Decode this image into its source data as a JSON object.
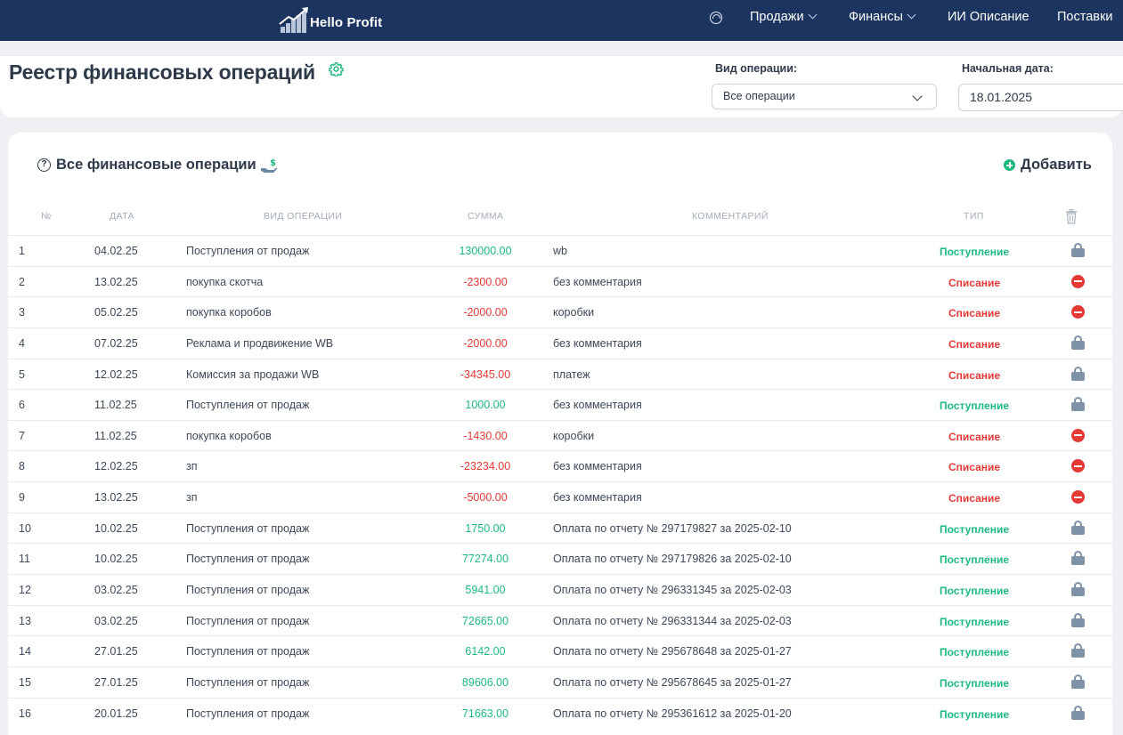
{
  "nav": {
    "logo_text": "Hello Profit",
    "items": [
      {
        "label": "Продажи",
        "has_dropdown": true
      },
      {
        "label": "Финансы",
        "has_dropdown": true
      },
      {
        "label": "ИИ Описание",
        "has_dropdown": false
      },
      {
        "label": "Поставки",
        "has_dropdown": false
      }
    ]
  },
  "header": {
    "title": "Реестр финансовых операций",
    "operation_type_label": "Вид операции:",
    "operation_type_value": "Все операции",
    "start_date_label": "Начальная дата:",
    "start_date_value": "18.01.2025"
  },
  "table": {
    "title": "Все финансовые операции",
    "add_label": "Добавить",
    "columns": [
      "№",
      "ДАТА",
      "ВИД ОПЕРАЦИИ",
      "СУММА",
      "КОММЕНТАРИЙ",
      "ТИП"
    ],
    "rows": [
      {
        "num": "1",
        "date": "04.02.25",
        "op": "Поступления от продаж",
        "sum": "130000.00",
        "comment": "wb",
        "type": "Поступление",
        "kind": "pos",
        "action": "lock"
      },
      {
        "num": "2",
        "date": "13.02.25",
        "op": "покупка скотча",
        "sum": "-2300.00",
        "comment": "без комментария",
        "type": "Списание",
        "kind": "neg",
        "action": "delete"
      },
      {
        "num": "3",
        "date": "05.02.25",
        "op": "покупка коробов",
        "sum": "-2000.00",
        "comment": "коробки",
        "type": "Списание",
        "kind": "neg",
        "action": "delete"
      },
      {
        "num": "4",
        "date": "07.02.25",
        "op": "Реклама и продвижение WB",
        "sum": "-2000.00",
        "comment": "без комментария",
        "type": "Списание",
        "kind": "neg",
        "action": "lock"
      },
      {
        "num": "5",
        "date": "12.02.25",
        "op": "Комиссия за продажи WB",
        "sum": "-34345.00",
        "comment": "платеж",
        "type": "Списание",
        "kind": "neg",
        "action": "lock"
      },
      {
        "num": "6",
        "date": "11.02.25",
        "op": "Поступления от продаж",
        "sum": "1000.00",
        "comment": "без комментария",
        "type": "Поступление",
        "kind": "pos",
        "action": "lock"
      },
      {
        "num": "7",
        "date": "11.02.25",
        "op": "покупка коробов",
        "sum": "-1430.00",
        "comment": "коробки",
        "type": "Списание",
        "kind": "neg",
        "action": "delete"
      },
      {
        "num": "8",
        "date": "12.02.25",
        "op": "зп",
        "sum": "-23234.00",
        "comment": "без комментария",
        "type": "Списание",
        "kind": "neg",
        "action": "delete"
      },
      {
        "num": "9",
        "date": "13.02.25",
        "op": "зп",
        "sum": "-5000.00",
        "comment": "без комментария",
        "type": "Списание",
        "kind": "neg",
        "action": "delete"
      },
      {
        "num": "10",
        "date": "10.02.25",
        "op": "Поступления от продаж",
        "sum": "1750.00",
        "comment": "Оплата по отчету № 297179827 за 2025-02-10",
        "type": "Поступление",
        "kind": "pos",
        "action": "lock"
      },
      {
        "num": "11",
        "date": "10.02.25",
        "op": "Поступления от продаж",
        "sum": "77274.00",
        "comment": "Оплата по отчету № 297179826 за 2025-02-10",
        "type": "Поступление",
        "kind": "pos",
        "action": "lock"
      },
      {
        "num": "12",
        "date": "03.02.25",
        "op": "Поступления от продаж",
        "sum": "5941.00",
        "comment": "Оплата по отчету № 296331345 за 2025-02-03",
        "type": "Поступление",
        "kind": "pos",
        "action": "lock"
      },
      {
        "num": "13",
        "date": "03.02.25",
        "op": "Поступления от продаж",
        "sum": "72665.00",
        "comment": "Оплата по отчету № 296331344 за 2025-02-03",
        "type": "Поступление",
        "kind": "pos",
        "action": "lock"
      },
      {
        "num": "14",
        "date": "27.01.25",
        "op": "Поступления от продаж",
        "sum": "6142.00",
        "comment": "Оплата по отчету № 295678648 за 2025-01-27",
        "type": "Поступление",
        "kind": "pos",
        "action": "lock"
      },
      {
        "num": "15",
        "date": "27.01.25",
        "op": "Поступления от продаж",
        "sum": "89606.00",
        "comment": "Оплата по отчету № 295678645 за 2025-01-27",
        "type": "Поступление",
        "kind": "pos",
        "action": "lock"
      },
      {
        "num": "16",
        "date": "20.01.25",
        "op": "Поступления от продаж",
        "sum": "71663.00",
        "comment": "Оплата по отчету № 295361612 за 2025-01-20",
        "type": "Поступление",
        "kind": "pos",
        "action": "lock"
      }
    ]
  },
  "colors": {
    "nav_bg": "#1c3560",
    "positive": "#1cba7e",
    "negative": "#e53935",
    "lock": "#7e93a8"
  }
}
